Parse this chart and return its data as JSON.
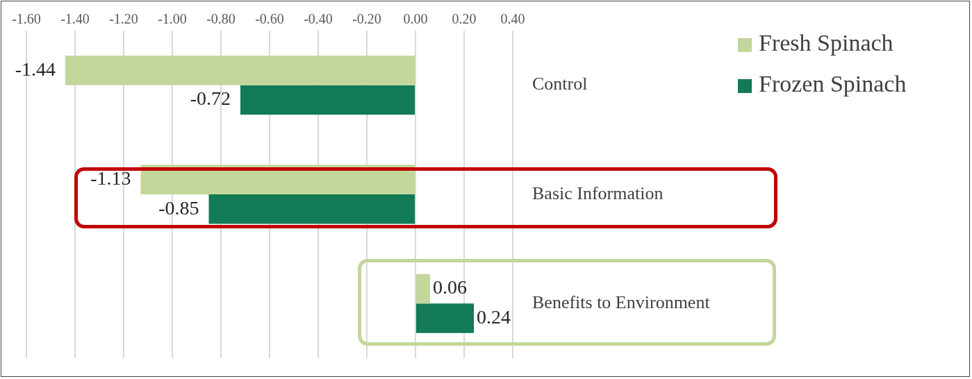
{
  "chart_data": {
    "type": "bar",
    "orientation": "horizontal",
    "categories": [
      "Control",
      "Basic Information",
      "Benefits to Environment"
    ],
    "series": [
      {
        "name": "Fresh Spinach",
        "color": "#c3d69b",
        "values": [
          -1.44,
          -1.13,
          0.06
        ],
        "value_labels": [
          "-1.44",
          "-1.13",
          "0.06"
        ]
      },
      {
        "name": "Frozen Spinach",
        "color": "#127a55",
        "values": [
          -0.72,
          -0.85,
          0.24
        ],
        "value_labels": [
          "-0.72",
          "-0.85",
          "0.24"
        ]
      }
    ],
    "xlim": [
      -1.6,
      0.4
    ],
    "xticks": [
      {
        "value": -1.6,
        "label": "-1.60"
      },
      {
        "value": -1.4,
        "label": "-1.40"
      },
      {
        "value": -1.2,
        "label": "-1.20"
      },
      {
        "value": -1.0,
        "label": "-1.00"
      },
      {
        "value": -0.8,
        "label": "-0.80"
      },
      {
        "value": -0.6,
        "label": "-0.60"
      },
      {
        "value": -0.4,
        "label": "-0.40"
      },
      {
        "value": -0.2,
        "label": "-0.20"
      },
      {
        "value": 0,
        "label": "0.00"
      },
      {
        "value": 0.2,
        "label": "0.20"
      },
      {
        "value": 0.4,
        "label": "0.40"
      }
    ],
    "grid": "x",
    "legend": "top right"
  }
}
